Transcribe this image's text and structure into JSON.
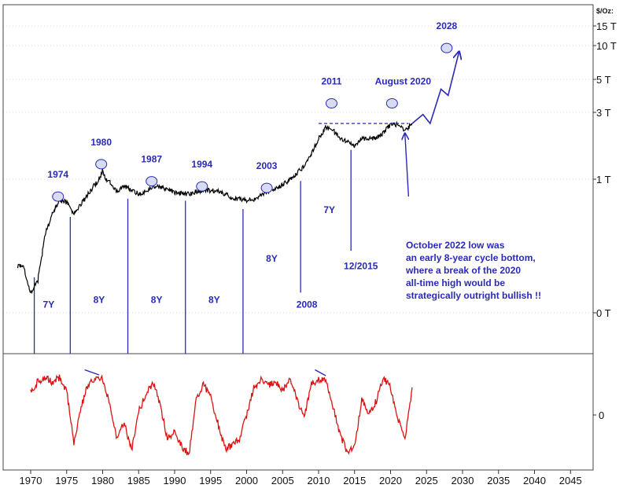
{
  "chart_data": {
    "type": "line",
    "unit_label": "$/Oz:",
    "x_ticks": [
      "1970",
      "1975",
      "1980",
      "1985",
      "1990",
      "1995",
      "2000",
      "2005",
      "2010",
      "2015",
      "2020",
      "2025",
      "2030",
      "2035",
      "2040",
      "2045"
    ],
    "y_ticks": [
      "15 T",
      "10 T",
      "5 T",
      "3 T",
      "1 T",
      "0 T"
    ],
    "oscillator_tick": "0",
    "price_series": {
      "color": "#000000",
      "points": [
        [
          1968.2,
          0.05
        ],
        [
          1969,
          0.05
        ],
        [
          1970,
          0.02
        ],
        [
          1971,
          0.03
        ],
        [
          1972,
          0.15
        ],
        [
          1973,
          0.3
        ],
        [
          1974,
          0.5
        ],
        [
          1975,
          0.45
        ],
        [
          1976,
          0.3
        ],
        [
          1977,
          0.42
        ],
        [
          1978,
          0.6
        ],
        [
          1979,
          0.85
        ],
        [
          1980,
          1.15
        ],
        [
          1980.5,
          0.95
        ],
        [
          1981,
          0.9
        ],
        [
          1982,
          0.65
        ],
        [
          1983,
          0.78
        ],
        [
          1984,
          0.7
        ],
        [
          1985,
          0.6
        ],
        [
          1986,
          0.66
        ],
        [
          1987,
          0.8
        ],
        [
          1988,
          0.76
        ],
        [
          1989,
          0.7
        ],
        [
          1990,
          0.64
        ],
        [
          1991,
          0.62
        ],
        [
          1992,
          0.6
        ],
        [
          1993,
          0.65
        ],
        [
          1994,
          0.68
        ],
        [
          1995,
          0.68
        ],
        [
          1996,
          0.66
        ],
        [
          1997,
          0.6
        ],
        [
          1998,
          0.52
        ],
        [
          1999,
          0.5
        ],
        [
          2000,
          0.48
        ],
        [
          2001,
          0.5
        ],
        [
          2002,
          0.58
        ],
        [
          2003,
          0.65
        ],
        [
          2004,
          0.75
        ],
        [
          2005,
          0.82
        ],
        [
          2006,
          1.0
        ],
        [
          2007,
          1.1
        ],
        [
          2008,
          1.25
        ],
        [
          2009,
          1.5
        ],
        [
          2010,
          1.95
        ],
        [
          2011,
          2.35
        ],
        [
          2012,
          2.25
        ],
        [
          2013,
          1.95
        ],
        [
          2014,
          1.85
        ],
        [
          2015,
          1.75
        ],
        [
          2016,
          1.95
        ],
        [
          2017,
          1.95
        ],
        [
          2018,
          1.95
        ],
        [
          2019,
          2.15
        ],
        [
          2020,
          2.45
        ],
        [
          2021,
          2.45
        ],
        [
          2022,
          2.2
        ],
        [
          2023,
          2.5
        ]
      ]
    },
    "projection_path": {
      "color": "#2a2ab8",
      "points": [
        [
          2023,
          2.5
        ],
        [
          2024.5,
          2.9
        ],
        [
          2025.5,
          2.5
        ],
        [
          2027,
          4.3
        ],
        [
          2028,
          3.9
        ],
        [
          2029.5,
          8.7
        ]
      ]
    },
    "resistance_line": {
      "from": 2010,
      "to": 2022.5,
      "value": 2.5
    },
    "oscillator_series": {
      "color": "#dd1111",
      "points": [
        [
          1970,
          60
        ],
        [
          1971,
          85
        ],
        [
          1972,
          95
        ],
        [
          1973,
          82
        ],
        [
          1974,
          96
        ],
        [
          1975,
          60
        ],
        [
          1976,
          -70
        ],
        [
          1977,
          20
        ],
        [
          1978,
          80
        ],
        [
          1979,
          95
        ],
        [
          1980,
          90
        ],
        [
          1981,
          30
        ],
        [
          1982,
          -60
        ],
        [
          1983,
          -20
        ],
        [
          1984,
          -90
        ],
        [
          1985,
          10
        ],
        [
          1986,
          50
        ],
        [
          1987,
          85
        ],
        [
          1988,
          25
        ],
        [
          1989,
          -60
        ],
        [
          1990,
          -40
        ],
        [
          1991,
          -80
        ],
        [
          1992,
          -100
        ],
        [
          1993,
          40
        ],
        [
          1994,
          80
        ],
        [
          1995,
          45
        ],
        [
          1996,
          -20
        ],
        [
          1997,
          -85
        ],
        [
          1998,
          -80
        ],
        [
          1999,
          -60
        ],
        [
          2000,
          0
        ],
        [
          2001,
          70
        ],
        [
          2002,
          90
        ],
        [
          2003,
          75
        ],
        [
          2004,
          85
        ],
        [
          2005,
          60
        ],
        [
          2006,
          95
        ],
        [
          2007,
          40
        ],
        [
          2008,
          -10
        ],
        [
          2009,
          80
        ],
        [
          2010,
          90
        ],
        [
          2011,
          85
        ],
        [
          2012,
          20
        ],
        [
          2013,
          -50
        ],
        [
          2014,
          -95
        ],
        [
          2015,
          -80
        ],
        [
          2016,
          40
        ],
        [
          2017,
          0
        ],
        [
          2018,
          35
        ],
        [
          2019,
          95
        ],
        [
          2020,
          70
        ],
        [
          2021,
          -10
        ],
        [
          2022,
          -65
        ],
        [
          2023,
          70
        ]
      ]
    },
    "cycle_peaks": [
      {
        "year": "1974",
        "x": 1973.8,
        "y": 0.55
      },
      {
        "year": "1980",
        "x": 1979.8,
        "y": 1.28
      },
      {
        "year": "1987",
        "x": 1986.8,
        "y": 0.93
      },
      {
        "year": "1994",
        "x": 1993.8,
        "y": 0.78
      },
      {
        "year": "2003",
        "x": 2002.8,
        "y": 0.74
      },
      {
        "year": "2011",
        "x": 2011.8,
        "y": 3.45
      },
      {
        "year": "August 2020",
        "x": 2020.2,
        "y": 3.45
      },
      {
        "year": "2028",
        "x": 2027.8,
        "y": 9.5
      }
    ],
    "cycle_bottoms": [
      {
        "x": 1970.5,
        "top": 0.04
      },
      {
        "x": 1975.5,
        "top": 0.32
      },
      {
        "x": 1983.5,
        "top": 0.6
      },
      {
        "x": 1991.5,
        "top": 0.56
      },
      {
        "x": 1999.5,
        "top": 0.42
      },
      {
        "x": 2007.5,
        "top": 1.05,
        "bottom": 0.02
      },
      {
        "x": 2014.5,
        "top": 1.75,
        "bottom": 0.085
      }
    ],
    "cycle_lengths": [
      {
        "label": "7Y",
        "x": 1972.5,
        "y": 0.012
      },
      {
        "label": "8Y",
        "x": 1979.5,
        "y": 0.014
      },
      {
        "label": "8Y",
        "x": 1987.5,
        "y": 0.014
      },
      {
        "label": "8Y",
        "x": 1995.5,
        "y": 0.014
      },
      {
        "label": "8Y",
        "x": 2003.5,
        "y": 0.058
      },
      {
        "label": "7Y",
        "x": 2011.5,
        "y": 0.31
      }
    ],
    "year_labels": [
      {
        "label": "2008",
        "x": 2007.5,
        "y": 0.012
      },
      {
        "label": "12/2015",
        "x": 2015,
        "y": 0.045
      }
    ],
    "annotation": [
      "October 2022 low was",
      "an early 8-year cycle bottom,",
      "where a break of the 2020",
      "all-time high would be",
      "strategically outright bullish !!"
    ],
    "annotation_arrow": {
      "from": [
        2022.5,
        0.55
      ],
      "to": [
        2022,
        2.1
      ]
    },
    "oscillator_arrows": [
      {
        "from": [
          1977.5,
          115
        ],
        "to": [
          1979.5,
          102
        ]
      },
      {
        "from": [
          2009.5,
          115
        ],
        "to": [
          2011,
          100
        ]
      }
    ]
  }
}
